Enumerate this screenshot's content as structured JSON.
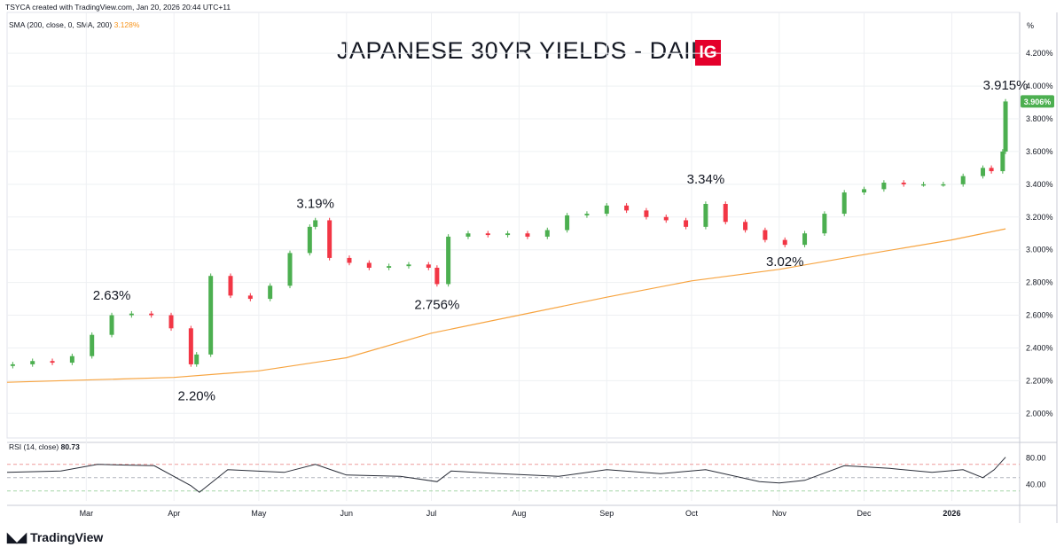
{
  "header": {
    "credit": "TSYCA created with TradingView.com, Jan 20, 2026 20:44 UTC+11"
  },
  "indicators": {
    "sma_label": "SMA (200, close, 0, SMA, 200)",
    "sma_value": "3.128%",
    "rsi_label": "RSI (14, close)",
    "rsi_value": "80.73"
  },
  "price_axis_unit": "%",
  "brand": {
    "logo_text": "IG",
    "footer": "TradingView",
    "footer_icon": "tradingview-logo-icon"
  },
  "colors": {
    "up": "#4caf50",
    "down": "#f23645",
    "sma": "#f7a440",
    "rsi": "#2a2e39",
    "last_badge": "#4caf50",
    "ig": "#e4002b"
  },
  "chart_data": {
    "type": "candlestick",
    "title": "JAPANESE 30YR YIELDS - DAILY",
    "ylabel": "%",
    "ylim": [
      1.85,
      4.45
    ],
    "y_ticks": [
      "2.000%",
      "2.200%",
      "2.400%",
      "2.600%",
      "2.800%",
      "3.000%",
      "3.200%",
      "3.400%",
      "3.600%",
      "3.800%",
      "4.000%",
      "4.200%"
    ],
    "y_tick_values": [
      2.0,
      2.2,
      2.4,
      2.6,
      2.8,
      3.0,
      3.2,
      3.4,
      3.6,
      3.8,
      4.0,
      4.2
    ],
    "x_ticks": [
      "Mar",
      "Apr",
      "May",
      "Jun",
      "Jul",
      "Aug",
      "Sep",
      "Oct",
      "Nov",
      "Dec",
      "2026"
    ],
    "x_tick_dates": [
      "2025-03-01",
      "2025-04-01",
      "2025-05-01",
      "2025-06-01",
      "2025-07-01",
      "2025-08-01",
      "2025-09-01",
      "2025-10-01",
      "2025-11-01",
      "2025-12-01",
      "2026-01-01"
    ],
    "last_price": "3.906%",
    "series": [
      {
        "name": "Close",
        "x": [
          "2025-02-03",
          "2025-02-10",
          "2025-02-17",
          "2025-02-24",
          "2025-03-03",
          "2025-03-10",
          "2025-03-17",
          "2025-03-24",
          "2025-03-31",
          "2025-04-07",
          "2025-04-09",
          "2025-04-14",
          "2025-04-21",
          "2025-04-28",
          "2025-05-05",
          "2025-05-12",
          "2025-05-19",
          "2025-05-21",
          "2025-05-26",
          "2025-06-02",
          "2025-06-09",
          "2025-06-16",
          "2025-06-23",
          "2025-06-30",
          "2025-07-03",
          "2025-07-07",
          "2025-07-14",
          "2025-07-21",
          "2025-07-28",
          "2025-08-04",
          "2025-08-11",
          "2025-08-18",
          "2025-08-25",
          "2025-09-01",
          "2025-09-08",
          "2025-09-15",
          "2025-09-22",
          "2025-09-29",
          "2025-10-06",
          "2025-10-13",
          "2025-10-20",
          "2025-10-27",
          "2025-11-03",
          "2025-11-10",
          "2025-11-17",
          "2025-11-24",
          "2025-12-01",
          "2025-12-08",
          "2025-12-15",
          "2025-12-22",
          "2025-12-29",
          "2026-01-05",
          "2026-01-12",
          "2026-01-15",
          "2026-01-19",
          "2026-01-20"
        ],
        "y": [
          2.3,
          2.32,
          2.31,
          2.35,
          2.48,
          2.6,
          2.61,
          2.6,
          2.52,
          2.3,
          2.36,
          2.84,
          2.72,
          2.7,
          2.78,
          2.98,
          3.14,
          3.18,
          2.95,
          2.92,
          2.89,
          2.9,
          2.91,
          2.89,
          2.79,
          3.08,
          3.1,
          3.09,
          3.1,
          3.08,
          3.12,
          3.21,
          3.22,
          3.27,
          3.24,
          3.2,
          3.18,
          3.14,
          3.28,
          3.17,
          3.12,
          3.06,
          3.03,
          3.1,
          3.22,
          3.35,
          3.37,
          3.41,
          3.4,
          3.4,
          3.4,
          3.45,
          3.5,
          3.48,
          3.6,
          3.906
        ]
      },
      {
        "name": "SMA (200, close, 0, SMA, 200)",
        "x": [
          "2025-02-01",
          "2025-04-01",
          "2025-05-01",
          "2025-06-01",
          "2025-07-01",
          "2025-08-01",
          "2025-09-01",
          "2025-10-01",
          "2025-11-01",
          "2025-12-01",
          "2026-01-01",
          "2026-01-20"
        ],
        "y": [
          2.19,
          2.22,
          2.26,
          2.34,
          2.49,
          2.6,
          2.71,
          2.81,
          2.88,
          2.97,
          3.06,
          3.128
        ]
      },
      {
        "name": "RSI (14, close)",
        "x": [
          "2025-02-01",
          "2025-02-20",
          "2025-03-05",
          "2025-03-25",
          "2025-04-07",
          "2025-04-10",
          "2025-04-20",
          "2025-05-10",
          "2025-05-21",
          "2025-06-01",
          "2025-06-20",
          "2025-07-03",
          "2025-07-08",
          "2025-07-25",
          "2025-08-15",
          "2025-09-01",
          "2025-09-20",
          "2025-10-06",
          "2025-10-25",
          "2025-11-01",
          "2025-11-10",
          "2025-11-24",
          "2025-12-10",
          "2025-12-25",
          "2026-01-05",
          "2026-01-12",
          "2026-01-16",
          "2026-01-20"
        ],
        "y": [
          58,
          60,
          70,
          68,
          38,
          28,
          62,
          58,
          70,
          54,
          52,
          44,
          60,
          56,
          52,
          62,
          56,
          62,
          44,
          42,
          46,
          68,
          64,
          58,
          62,
          50,
          62,
          80.73
        ]
      }
    ],
    "rsi_ticks": [
      "40.00",
      "80.00"
    ],
    "rsi_tick_values": [
      40,
      80
    ],
    "rsi_bands": [
      30,
      50,
      70
    ],
    "annotations": [
      {
        "text": "2.63%",
        "date": "2025-03-10",
        "value": 2.63,
        "position": "above"
      },
      {
        "text": "2.20%",
        "date": "2025-04-09",
        "value": 2.2,
        "position": "below"
      },
      {
        "text": "3.19%",
        "date": "2025-05-21",
        "value": 3.19,
        "position": "above"
      },
      {
        "text": "2.756%",
        "date": "2025-07-03",
        "value": 2.756,
        "position": "below"
      },
      {
        "text": "3.34%",
        "date": "2025-10-06",
        "value": 3.34,
        "position": "above"
      },
      {
        "text": "3.02%",
        "date": "2025-11-03",
        "value": 3.02,
        "position": "below"
      },
      {
        "text": "3.915%",
        "date": "2026-01-20",
        "value": 3.915,
        "position": "above"
      }
    ],
    "grid": true,
    "legend": "top-left"
  }
}
